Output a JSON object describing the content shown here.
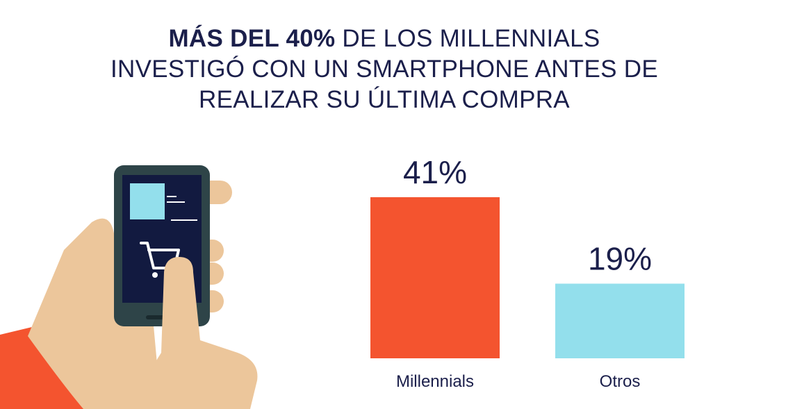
{
  "title": {
    "line1_bold": "MÁS DEL 40%",
    "line1_rest": " DE LOS MILLENNIALS",
    "line2": "INVESTIGÓ CON UN SMARTPHONE ANTES DE",
    "line3": "REALIZAR SU ÚLTIMA COMPRA"
  },
  "illustration": {
    "icons": [
      "hand-icon",
      "smartphone-icon",
      "shopping-cart-icon"
    ]
  },
  "chart_data": {
    "type": "bar",
    "title": "MÁS DEL 40% DE LOS MILLENNIALS INVESTIGÓ CON UN SMARTPHONE ANTES DE REALIZAR SU ÚLTIMA COMPRA",
    "categories": [
      "Millennials",
      "Otros"
    ],
    "values": [
      41,
      19
    ],
    "labels": [
      "41%",
      "19%"
    ],
    "colors": [
      "#f4542f",
      "#93dfec"
    ],
    "ylim": [
      0,
      41
    ],
    "grid": false,
    "legend": "none"
  },
  "colors": {
    "text": "#1b1f4b",
    "accent": "#f4542f",
    "secondary": "#93dfec",
    "skin": "#ecc69b",
    "phone_body": "#2e4448",
    "phone_screen": "#121a40"
  }
}
